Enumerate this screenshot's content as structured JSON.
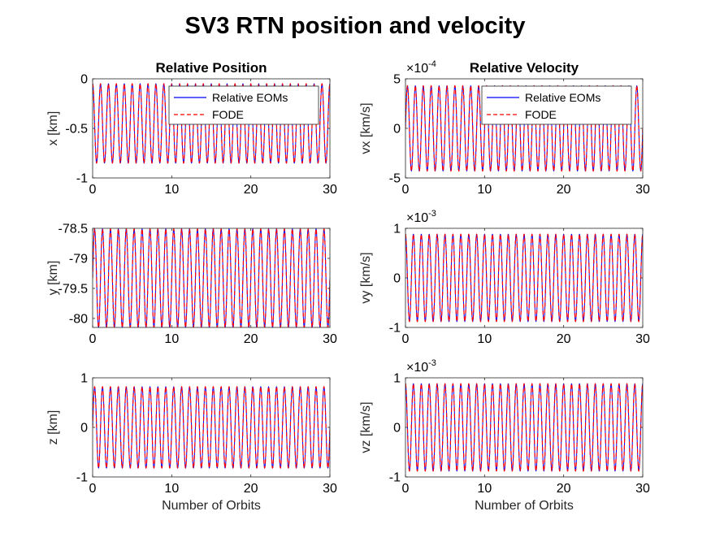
{
  "figure": {
    "title": "SV3 RTN position and velocity"
  },
  "colors": {
    "eom": "#0000ff",
    "fode": "#ff0000"
  },
  "legend": {
    "items": [
      "Relative EOMs",
      "FODE"
    ]
  },
  "chart_data": [
    {
      "id": "x",
      "type": "line",
      "title": "Relative Position",
      "xlabel": "",
      "ylabel": "x [km]",
      "xlim": [
        0,
        30
      ],
      "ylim": [
        -1,
        0
      ],
      "xticks": [
        "0",
        "10",
        "20",
        "30"
      ],
      "yticks": [
        "-1",
        "-0.5",
        "0"
      ],
      "exponent": null,
      "legend": "top-right",
      "series": [
        {
          "name": "Relative EOMs",
          "style": "solid",
          "color": "#0000ff",
          "periods_per_orbit": 1,
          "mean": -0.45,
          "amplitude": 0.4,
          "phase": 1.5708
        },
        {
          "name": "FODE",
          "style": "dashed",
          "color": "#ff0000",
          "periods_per_orbit": 1,
          "mean": -0.45,
          "amplitude": 0.4,
          "phase": 1.5708
        }
      ]
    },
    {
      "id": "vx",
      "type": "line",
      "title": "Relative Velocity",
      "xlabel": "",
      "ylabel": "vx [km/s]",
      "xlim": [
        0,
        30
      ],
      "ylim": [
        -5,
        5
      ],
      "xticks": [
        "0",
        "10",
        "20",
        "30"
      ],
      "yticks": [
        "-5",
        "0",
        "5"
      ],
      "exponent": {
        "base": "10",
        "power": "-4"
      },
      "legend": "top-right",
      "series": [
        {
          "name": "Relative EOMs",
          "style": "solid",
          "color": "#0000ff",
          "periods_per_orbit": 1,
          "mean": 0,
          "amplitude": 4.3,
          "phase": 0
        },
        {
          "name": "FODE",
          "style": "dashed",
          "color": "#ff0000",
          "periods_per_orbit": 1,
          "mean": 0,
          "amplitude": 4.3,
          "phase": 0
        }
      ]
    },
    {
      "id": "y",
      "type": "line",
      "title": "",
      "xlabel": "",
      "ylabel": "y [km]",
      "xlim": [
        0,
        30
      ],
      "ylim": [
        -80.15,
        -78.5
      ],
      "xticks": [
        "0",
        "10",
        "20",
        "30"
      ],
      "yticks": [
        "-80",
        "-79.5",
        "-79",
        "-78.5"
      ],
      "yticks_values": [
        -80,
        -79.5,
        -79,
        -78.5
      ],
      "exponent": null,
      "legend": "none",
      "series": [
        {
          "name": "Relative EOMs",
          "style": "solid",
          "color": "#0000ff",
          "periods_per_orbit": 1,
          "mean": -79.33,
          "amplitude": 0.82,
          "phase": 0
        },
        {
          "name": "FODE",
          "style": "dashed",
          "color": "#ff0000",
          "periods_per_orbit": 1,
          "mean": -79.33,
          "amplitude": 0.82,
          "phase": 0
        }
      ]
    },
    {
      "id": "vy",
      "type": "line",
      "title": "",
      "xlabel": "",
      "ylabel": "vy [km/s]",
      "xlim": [
        0,
        30
      ],
      "ylim": [
        -1,
        1
      ],
      "xticks": [
        "0",
        "10",
        "20",
        "30"
      ],
      "yticks": [
        "-1",
        "0",
        "1"
      ],
      "exponent": {
        "base": "10",
        "power": "-3"
      },
      "legend": "none",
      "series": [
        {
          "name": "Relative EOMs",
          "style": "solid",
          "color": "#0000ff",
          "periods_per_orbit": 1,
          "mean": 0,
          "amplitude": 0.88,
          "phase": 1.5708
        },
        {
          "name": "FODE",
          "style": "dashed",
          "color": "#ff0000",
          "periods_per_orbit": 1,
          "mean": 0,
          "amplitude": 0.88,
          "phase": 1.5708
        }
      ]
    },
    {
      "id": "z",
      "type": "line",
      "title": "",
      "xlabel": "Number of Orbits",
      "ylabel": "z [km]",
      "xlim": [
        0,
        30
      ],
      "ylim": [
        -1,
        1
      ],
      "xticks": [
        "0",
        "10",
        "20",
        "30"
      ],
      "yticks": [
        "-1",
        "0",
        "1"
      ],
      "exponent": null,
      "legend": "none",
      "series": [
        {
          "name": "Relative EOMs",
          "style": "solid",
          "color": "#0000ff",
          "periods_per_orbit": 1,
          "mean": 0,
          "amplitude": 0.82,
          "phase": 0
        },
        {
          "name": "FODE",
          "style": "dashed",
          "color": "#ff0000",
          "periods_per_orbit": 1,
          "mean": 0,
          "amplitude": 0.82,
          "phase": 0
        }
      ]
    },
    {
      "id": "vz",
      "type": "line",
      "title": "",
      "xlabel": "Number of Orbits",
      "ylabel": "vz [km/s]",
      "xlim": [
        0,
        30
      ],
      "ylim": [
        -1,
        1
      ],
      "xticks": [
        "0",
        "10",
        "20",
        "30"
      ],
      "yticks": [
        "-1",
        "0",
        "1"
      ],
      "exponent": {
        "base": "10",
        "power": "-3"
      },
      "legend": "none",
      "series": [
        {
          "name": "Relative EOMs",
          "style": "solid",
          "color": "#0000ff",
          "periods_per_orbit": 1,
          "mean": 0,
          "amplitude": 0.88,
          "phase": 1.5708
        },
        {
          "name": "FODE",
          "style": "dashed",
          "color": "#ff0000",
          "periods_per_orbit": 1,
          "mean": 0,
          "amplitude": 0.88,
          "phase": 1.5708
        }
      ]
    }
  ]
}
